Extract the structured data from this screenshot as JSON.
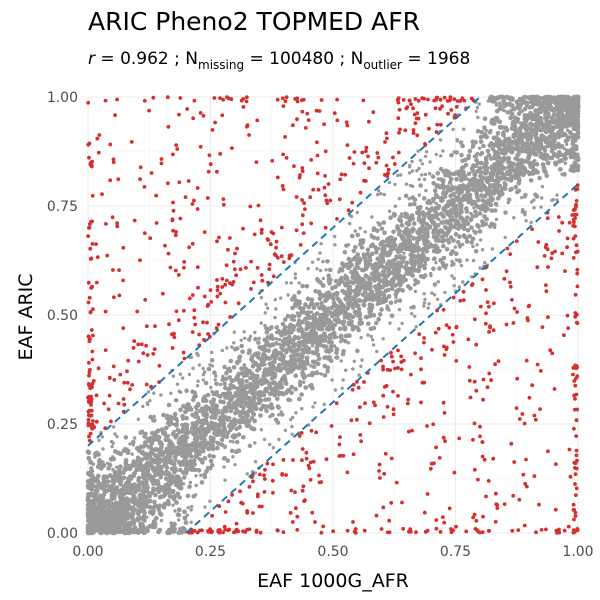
{
  "chart_data": {
    "type": "scatter",
    "title": "ARIC Pheno2 TOPMED AFR",
    "subtitle": {
      "r_label": "r",
      "r_value": "0.962",
      "n_missing_label": "N",
      "n_missing_sub": "missing",
      "n_missing_value": "100480",
      "n_outlier_label": "N",
      "n_outlier_sub": "outlier",
      "n_outlier_value": "1968"
    },
    "xlabel": "EAF 1000G_AFR",
    "ylabel": "EAF ARIC",
    "xlim": [
      0,
      1
    ],
    "ylim": [
      0,
      1
    ],
    "x_ticks": [
      "0.00",
      "0.25",
      "0.50",
      "0.75",
      "1.00"
    ],
    "y_ticks": [
      "0.00",
      "0.25",
      "0.50",
      "0.75",
      "1.00"
    ],
    "grid": true,
    "reference_lines": [
      {
        "slope": 1,
        "intercept": 0.2,
        "style": "dashed"
      },
      {
        "slope": 1,
        "intercept": -0.2,
        "style": "dashed"
      }
    ],
    "series": [
      {
        "name": "",
        "color": "#999999",
        "description_points": "within band",
        "band_halfwidth": 0.2
      },
      {
        "name": "",
        "color": "#d62f30",
        "description_points": "outliers",
        "count": 1968
      }
    ],
    "colors": {
      "inlier": "#999999",
      "outlier": "#d62f30",
      "reference_line": "#1f77b4"
    }
  }
}
